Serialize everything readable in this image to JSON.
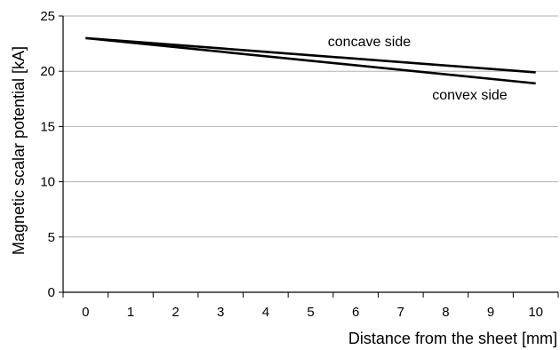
{
  "chart_data": {
    "type": "line",
    "title": "",
    "xlabel": "Distance from the sheet [mm]",
    "ylabel": "Magnetic scalar potential [kA]",
    "x_ticks": [
      "0",
      "1",
      "2",
      "3",
      "4",
      "5",
      "6",
      "7",
      "8",
      "9",
      "10"
    ],
    "y_ticks": [
      "0",
      "5",
      "10",
      "15",
      "20",
      "25"
    ],
    "xlim": [
      -0.5,
      10.5
    ],
    "ylim": [
      0,
      25
    ],
    "grid": "horizontal",
    "legend": "none",
    "series": [
      {
        "name": "concave side",
        "x": [
          0,
          10
        ],
        "y": [
          23.0,
          19.9
        ]
      },
      {
        "name": "convex side",
        "x": [
          0,
          10
        ],
        "y": [
          23.0,
          18.9
        ]
      }
    ],
    "colors": {
      "line": "#000000",
      "grid": "#b0b0b0",
      "axis": "#000000"
    }
  }
}
